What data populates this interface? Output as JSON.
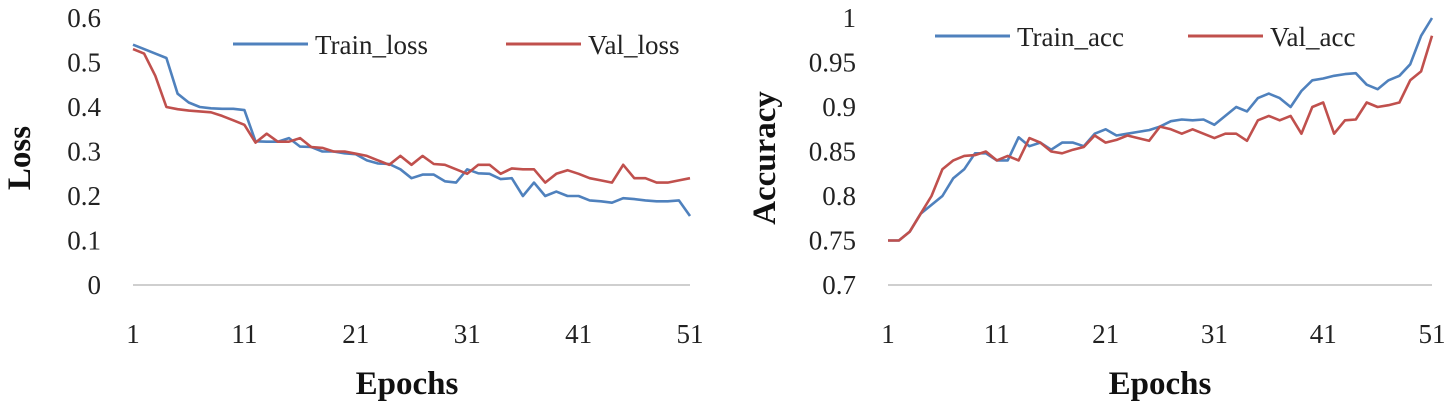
{
  "colors": {
    "train": "#4f81bd",
    "val": "#c0504d",
    "axis": "#bfbfbf"
  },
  "chart_data": [
    {
      "type": "line",
      "ylabel": "Loss",
      "xlabel": "Epochs",
      "ylim": [
        0,
        0.6
      ],
      "yticks": [
        0,
        0.1,
        0.2,
        0.3,
        0.4,
        0.5,
        0.6
      ],
      "ytick_labels": [
        "0",
        "0.1",
        "0.2",
        "0.3",
        "0.4",
        "0.5",
        "0.6"
      ],
      "xlim": [
        1,
        51
      ],
      "xticks": [
        1,
        11,
        21,
        31,
        41,
        51
      ],
      "xtick_labels": [
        "1",
        "11",
        "21",
        "31",
        "41",
        "51"
      ],
      "legend_position": "top-right",
      "series": [
        {
          "name": "Train_loss",
          "values": [
            0.54,
            0.53,
            0.52,
            0.51,
            0.43,
            0.41,
            0.4,
            0.397,
            0.396,
            0.396,
            0.393,
            0.323,
            0.322,
            0.322,
            0.33,
            0.311,
            0.31,
            0.3,
            0.3,
            0.296,
            0.294,
            0.28,
            0.273,
            0.272,
            0.26,
            0.24,
            0.248,
            0.248,
            0.233,
            0.23,
            0.26,
            0.251,
            0.25,
            0.238,
            0.24,
            0.2,
            0.23,
            0.2,
            0.21,
            0.2,
            0.2,
            0.19,
            0.188,
            0.185,
            0.195,
            0.193,
            0.19,
            0.188,
            0.188,
            0.19,
            0.155
          ]
        },
        {
          "name": "Val_loss",
          "values": [
            0.53,
            0.52,
            0.47,
            0.4,
            0.395,
            0.392,
            0.39,
            0.388,
            0.38,
            0.37,
            0.36,
            0.32,
            0.34,
            0.322,
            0.322,
            0.33,
            0.31,
            0.308,
            0.3,
            0.3,
            0.295,
            0.29,
            0.28,
            0.27,
            0.29,
            0.27,
            0.29,
            0.272,
            0.27,
            0.26,
            0.25,
            0.27,
            0.27,
            0.25,
            0.262,
            0.26,
            0.26,
            0.23,
            0.25,
            0.258,
            0.25,
            0.24,
            0.235,
            0.23,
            0.27,
            0.24,
            0.24,
            0.23,
            0.23,
            0.235,
            0.24
          ]
        }
      ]
    },
    {
      "type": "line",
      "ylabel": "Accuracy",
      "xlabel": "Epochs",
      "ylim": [
        0.7,
        1
      ],
      "yticks": [
        0.7,
        0.75,
        0.8,
        0.85,
        0.9,
        0.95,
        1
      ],
      "ytick_labels": [
        "0.7",
        "0.75",
        "0.8",
        "0.85",
        "0.9",
        "0.95",
        "1"
      ],
      "xlim": [
        1,
        51
      ],
      "xticks": [
        1,
        11,
        21,
        31,
        41,
        51
      ],
      "xtick_labels": [
        "1",
        "11",
        "21",
        "31",
        "41",
        "51"
      ],
      "legend_position": "top-right",
      "series": [
        {
          "name": "Train_acc",
          "values": [
            0.75,
            0.75,
            0.76,
            0.78,
            0.79,
            0.8,
            0.82,
            0.83,
            0.848,
            0.848,
            0.84,
            0.84,
            0.866,
            0.856,
            0.86,
            0.852,
            0.86,
            0.86,
            0.856,
            0.87,
            0.875,
            0.868,
            0.87,
            0.872,
            0.874,
            0.878,
            0.884,
            0.886,
            0.885,
            0.886,
            0.88,
            0.89,
            0.9,
            0.895,
            0.91,
            0.915,
            0.91,
            0.9,
            0.918,
            0.93,
            0.932,
            0.935,
            0.937,
            0.938,
            0.925,
            0.92,
            0.93,
            0.935,
            0.948,
            0.98,
            1.0
          ]
        },
        {
          "name": "Val_acc",
          "values": [
            0.75,
            0.75,
            0.76,
            0.78,
            0.8,
            0.83,
            0.84,
            0.845,
            0.846,
            0.85,
            0.84,
            0.845,
            0.84,
            0.865,
            0.86,
            0.85,
            0.848,
            0.852,
            0.855,
            0.868,
            0.86,
            0.863,
            0.868,
            0.865,
            0.862,
            0.878,
            0.875,
            0.87,
            0.875,
            0.87,
            0.865,
            0.87,
            0.87,
            0.862,
            0.885,
            0.89,
            0.885,
            0.89,
            0.87,
            0.9,
            0.905,
            0.87,
            0.885,
            0.886,
            0.905,
            0.9,
            0.902,
            0.905,
            0.93,
            0.94,
            0.98
          ]
        }
      ]
    }
  ]
}
